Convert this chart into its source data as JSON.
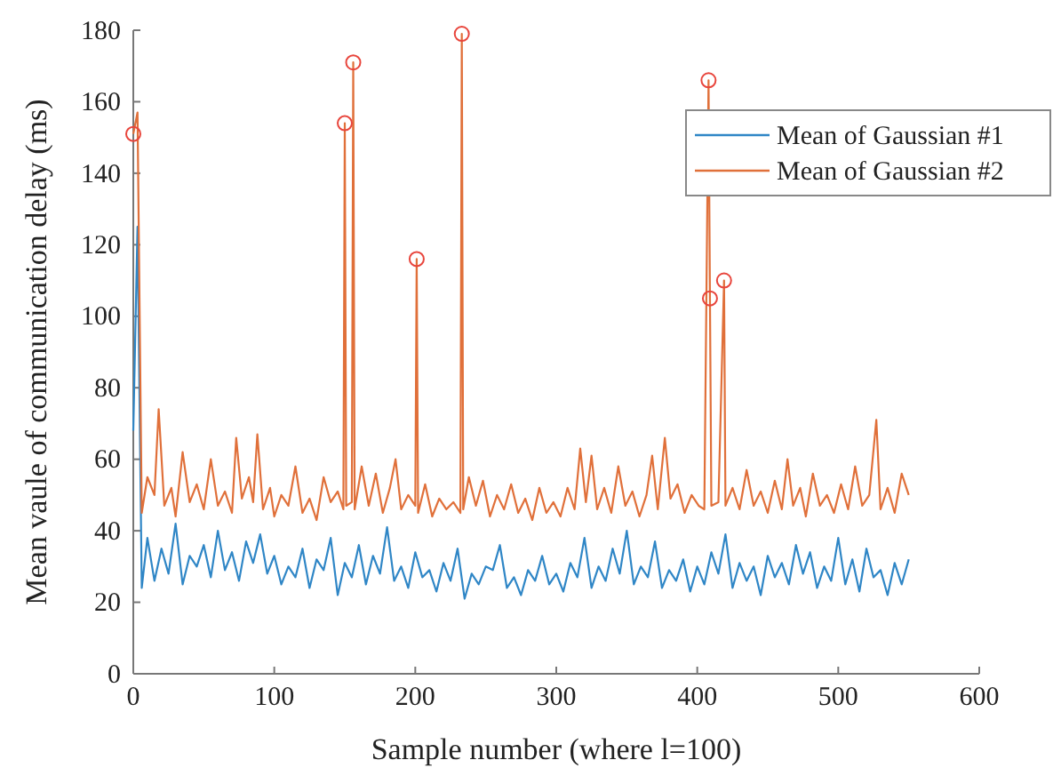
{
  "chart_data": {
    "type": "line",
    "xlabel": "Sample number (where l=100)",
    "ylabel": "Mean vaule of communication delay (ms)",
    "xlim": [
      0,
      600
    ],
    "ylim": [
      0,
      180
    ],
    "xticks": [
      0,
      100,
      200,
      300,
      400,
      500,
      600
    ],
    "yticks": [
      0,
      20,
      40,
      60,
      80,
      100,
      120,
      140,
      160,
      180
    ],
    "legend": "top right",
    "series": [
      {
        "name": "Mean of Gaussian #1",
        "color": "#2f86c6",
        "x": [
          0,
          3,
          6,
          10,
          15,
          20,
          25,
          30,
          35,
          40,
          45,
          50,
          55,
          60,
          65,
          70,
          75,
          80,
          85,
          90,
          95,
          100,
          105,
          110,
          115,
          120,
          125,
          130,
          135,
          140,
          145,
          150,
          155,
          160,
          165,
          170,
          175,
          180,
          185,
          190,
          195,
          200,
          205,
          210,
          215,
          220,
          225,
          230,
          235,
          240,
          245,
          250,
          255,
          260,
          265,
          270,
          275,
          280,
          285,
          290,
          295,
          300,
          305,
          310,
          315,
          320,
          325,
          330,
          335,
          340,
          345,
          350,
          355,
          360,
          365,
          370,
          375,
          380,
          385,
          390,
          395,
          400,
          405,
          410,
          415,
          420,
          425,
          430,
          435,
          440,
          445,
          450,
          455,
          460,
          465,
          470,
          475,
          480,
          485,
          490,
          495,
          500,
          505,
          510,
          515,
          520,
          525,
          530,
          535,
          540,
          545,
          550
        ],
        "values": [
          68,
          125,
          24,
          38,
          26,
          35,
          28,
          42,
          25,
          33,
          30,
          36,
          27,
          40,
          29,
          34,
          26,
          37,
          31,
          39,
          28,
          33,
          25,
          30,
          27,
          35,
          24,
          32,
          29,
          38,
          22,
          31,
          27,
          36,
          25,
          33,
          28,
          41,
          26,
          30,
          24,
          34,
          27,
          29,
          23,
          31,
          26,
          35,
          21,
          28,
          25,
          30,
          29,
          36,
          24,
          27,
          22,
          29,
          26,
          33,
          25,
          28,
          23,
          31,
          27,
          38,
          24,
          30,
          26,
          35,
          28,
          40,
          25,
          30,
          27,
          37,
          24,
          29,
          26,
          32,
          23,
          30,
          25,
          34,
          28,
          39,
          24,
          31,
          26,
          30,
          22,
          33,
          27,
          31,
          25,
          36,
          28,
          34,
          24,
          30,
          26,
          38,
          25,
          32,
          23,
          35,
          27,
          29,
          22,
          31,
          25,
          32
        ]
      },
      {
        "name": "Mean of Gaussian #2",
        "color": "#e0703a",
        "x": [
          0,
          3,
          6,
          10,
          15,
          18,
          22,
          27,
          30,
          35,
          40,
          45,
          50,
          55,
          60,
          65,
          70,
          73,
          77,
          82,
          85,
          88,
          92,
          97,
          100,
          105,
          110,
          115,
          120,
          125,
          130,
          135,
          140,
          145,
          149,
          150,
          151,
          155,
          156,
          157,
          162,
          167,
          172,
          177,
          182,
          186,
          190,
          195,
          200,
          201,
          202,
          207,
          212,
          217,
          222,
          227,
          232,
          233,
          234,
          238,
          243,
          248,
          253,
          258,
          263,
          268,
          273,
          278,
          283,
          288,
          293,
          298,
          303,
          308,
          313,
          317,
          321,
          325,
          329,
          334,
          339,
          344,
          349,
          354,
          359,
          364,
          368,
          372,
          377,
          381,
          386,
          391,
          396,
          401,
          405,
          408,
          409,
          410,
          415,
          419,
          420,
          425,
          430,
          435,
          440,
          445,
          450,
          455,
          460,
          464,
          468,
          473,
          477,
          482,
          487,
          492,
          497,
          502,
          507,
          512,
          517,
          522,
          527,
          530,
          535,
          540,
          545,
          550
        ],
        "values": [
          151,
          157,
          45,
          55,
          50,
          74,
          47,
          52,
          44,
          62,
          48,
          53,
          46,
          60,
          47,
          51,
          45,
          66,
          49,
          55,
          48,
          67,
          46,
          52,
          44,
          50,
          47,
          58,
          45,
          49,
          43,
          55,
          48,
          51,
          46,
          154,
          47,
          48,
          171,
          46,
          58,
          47,
          56,
          45,
          52,
          60,
          46,
          50,
          47,
          116,
          45,
          53,
          44,
          49,
          46,
          48,
          45,
          179,
          46,
          55,
          47,
          54,
          44,
          50,
          46,
          53,
          45,
          49,
          43,
          52,
          45,
          48,
          44,
          52,
          46,
          63,
          48,
          61,
          46,
          52,
          45,
          58,
          47,
          51,
          44,
          50,
          61,
          46,
          66,
          49,
          53,
          45,
          50,
          47,
          46,
          166,
          105,
          47,
          48,
          110,
          47,
          52,
          46,
          57,
          47,
          51,
          45,
          54,
          46,
          60,
          47,
          52,
          44,
          56,
          47,
          50,
          45,
          53,
          46,
          58,
          47,
          50,
          71,
          46,
          52,
          45,
          56,
          50
        ]
      },
      {
        "type": "scatter",
        "marker": "circle",
        "color": "#e8453c",
        "x": [
          0,
          150,
          156,
          201,
          233,
          408,
          409,
          419
        ],
        "values": [
          151,
          154,
          171,
          116,
          179,
          166,
          105,
          110
        ]
      }
    ]
  }
}
